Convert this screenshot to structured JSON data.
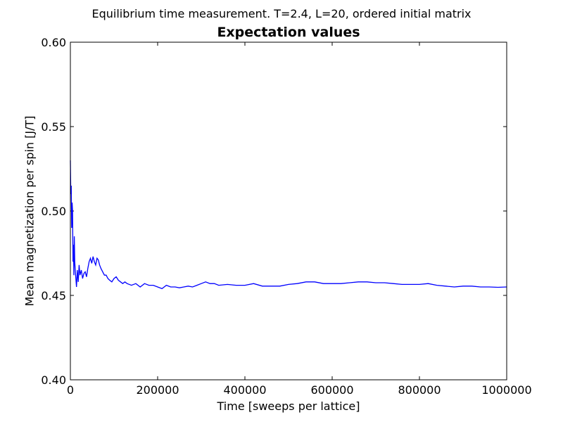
{
  "suptitle": "Equilibrium time measurement. T=2.4, L=20, ordered initial matrix",
  "chart_data": {
    "type": "line",
    "title": "Expectation values",
    "xlabel": "Time [sweeps per lattice]",
    "ylabel": "Mean magnetization per spin [J/T]",
    "xlim": [
      0,
      1000000
    ],
    "ylim": [
      0.4,
      0.6
    ],
    "xticks": [
      "0",
      "200000",
      "400000",
      "600000",
      "800000",
      "1000000"
    ],
    "yticks": [
      "0.40",
      "0.45",
      "0.50",
      "0.55",
      "0.60"
    ],
    "grid": false,
    "legend": "none",
    "series": [
      {
        "color": "#0000ff",
        "x": [
          0,
          1000,
          2000,
          3000,
          4000,
          5000,
          6000,
          7000,
          8000,
          9000,
          10000,
          12000,
          14000,
          16000,
          18000,
          20000,
          22000,
          25000,
          28000,
          31000,
          34000,
          37000,
          40000,
          43000,
          46000,
          49000,
          52000,
          55000,
          58000,
          61000,
          64000,
          67000,
          70000,
          74000,
          78000,
          82000,
          86000,
          90000,
          95000,
          100000,
          105000,
          110000,
          115000,
          120000,
          125000,
          130000,
          140000,
          150000,
          160000,
          170000,
          180000,
          190000,
          200000,
          210000,
          220000,
          230000,
          240000,
          250000,
          260000,
          270000,
          280000,
          290000,
          300000,
          310000,
          320000,
          330000,
          340000,
          360000,
          380000,
          400000,
          420000,
          440000,
          460000,
          480000,
          500000,
          520000,
          540000,
          560000,
          580000,
          600000,
          620000,
          640000,
          660000,
          680000,
          700000,
          720000,
          740000,
          760000,
          780000,
          800000,
          820000,
          840000,
          860000,
          880000,
          900000,
          920000,
          940000,
          960000,
          980000,
          1000000
        ],
        "y": [
          0.53,
          0.51,
          0.515,
          0.49,
          0.505,
          0.5,
          0.47,
          0.48,
          0.462,
          0.485,
          0.47,
          0.462,
          0.455,
          0.465,
          0.458,
          0.468,
          0.462,
          0.465,
          0.46,
          0.463,
          0.464,
          0.461,
          0.466,
          0.47,
          0.472,
          0.469,
          0.473,
          0.47,
          0.468,
          0.472,
          0.471,
          0.468,
          0.466,
          0.464,
          0.462,
          0.462,
          0.46,
          0.459,
          0.458,
          0.46,
          0.461,
          0.459,
          0.458,
          0.457,
          0.458,
          0.457,
          0.456,
          0.457,
          0.455,
          0.457,
          0.456,
          0.456,
          0.455,
          0.454,
          0.456,
          0.455,
          0.455,
          0.4545,
          0.455,
          0.4555,
          0.455,
          0.456,
          0.457,
          0.458,
          0.457,
          0.457,
          0.456,
          0.4565,
          0.456,
          0.456,
          0.457,
          0.4555,
          0.4555,
          0.4555,
          0.4565,
          0.457,
          0.458,
          0.458,
          0.457,
          0.457,
          0.457,
          0.4575,
          0.458,
          0.458,
          0.4575,
          0.4575,
          0.457,
          0.4565,
          0.4565,
          0.4565,
          0.457,
          0.456,
          0.4555,
          0.455,
          0.4555,
          0.4555,
          0.455,
          0.455,
          0.4548,
          0.455
        ]
      }
    ]
  }
}
